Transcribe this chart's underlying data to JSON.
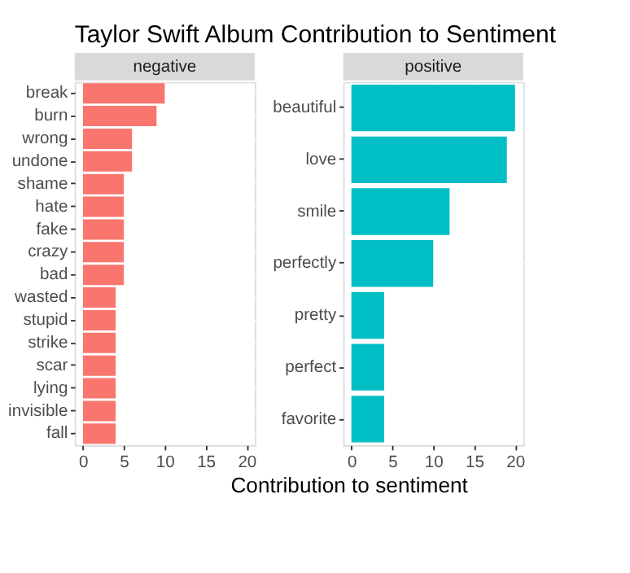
{
  "chart_data": [
    {
      "type": "bar",
      "orientation": "horizontal",
      "title": "negative",
      "annotations": [
        "Taylor Swift Album Contribution to Sentiment"
      ],
      "xlabel": "Contribution to sentiment",
      "categories": [
        "break",
        "burn",
        "wrong",
        "undone",
        "shame",
        "hate",
        "fake",
        "crazy",
        "bad",
        "wasted",
        "stupid",
        "strike",
        "scar",
        "lying",
        "invisible",
        "fall"
      ],
      "series": [
        {
          "color": "#f8766d",
          "values": [
            10,
            9,
            6,
            6,
            5,
            5,
            5,
            5,
            5,
            4,
            4,
            4,
            4,
            4,
            4,
            4
          ]
        }
      ],
      "xlim": [
        -1,
        21
      ],
      "xticks": [
        0,
        5,
        10,
        15,
        20
      ],
      "grid": true
    },
    {
      "type": "bar",
      "orientation": "horizontal",
      "title": "positive",
      "categories": [
        "beautiful",
        "love",
        "smile",
        "perfectly",
        "pretty",
        "perfect",
        "favorite"
      ],
      "series": [
        {
          "color": "#00bfc4",
          "values": [
            20,
            19,
            12,
            10,
            4,
            4,
            4
          ]
        }
      ],
      "xlim": [
        -1,
        21
      ],
      "xticks": [
        0,
        5,
        10,
        15,
        20
      ],
      "grid": true
    }
  ]
}
